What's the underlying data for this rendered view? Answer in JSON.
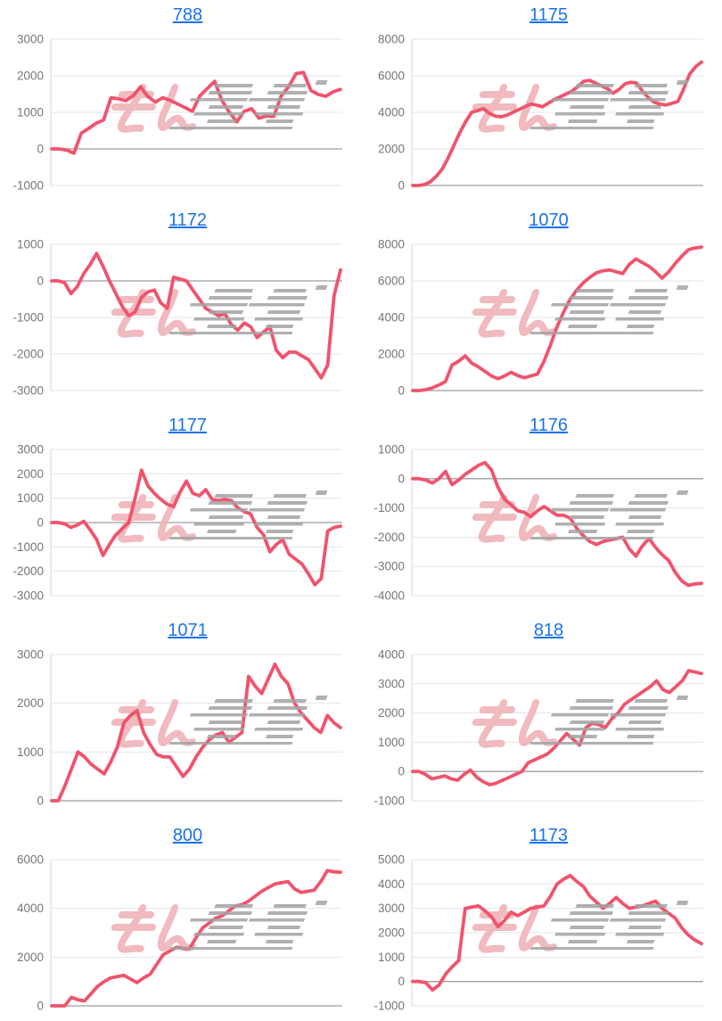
{
  "page": {
    "background": "#ffffff",
    "layout": "2x5-grid-of-machine-slump-graphs"
  },
  "style": {
    "line_color": "#f1536c",
    "grid_color": "#e4e4e4",
    "zero_line_color": "#9e9e9e",
    "axis_color": "#d4d4d4",
    "tick_label_color": "#767676",
    "title_link_color": "#1a73e8",
    "watermark_pink_color": "#efb3b8",
    "watermark_gray_color": "#a3a3a3"
  },
  "watermark": {
    "name": "minrepo-logo-watermark",
    "pink_part": "みん",
    "gray_part": "レポ"
  },
  "chart_data": [
    {
      "type": "line",
      "title": "788",
      "xlabel": "",
      "ylabel": "",
      "ylim": [
        -1000,
        3000
      ],
      "ticks": [
        3000,
        2000,
        1000,
        0,
        -1000
      ],
      "values": [
        0,
        0,
        -30,
        -120,
        430,
        560,
        700,
        790,
        1400,
        1370,
        1320,
        1450,
        1700,
        1430,
        1280,
        1400,
        1330,
        1230,
        1130,
        1030,
        1450,
        1650,
        1850,
        1320,
        1000,
        740,
        1030,
        1100,
        840,
        900,
        890,
        1450,
        1700,
        2060,
        2090,
        1600,
        1490,
        1440,
        1560,
        1630
      ]
    },
    {
      "type": "line",
      "title": "1175",
      "xlabel": "",
      "ylabel": "",
      "ylim": [
        0,
        8000
      ],
      "ticks": [
        8000,
        6000,
        4000,
        2000,
        0
      ],
      "values": [
        0,
        0,
        50,
        200,
        500,
        900,
        1500,
        2200,
        2900,
        3500,
        4000,
        4100,
        4200,
        3950,
        3800,
        3750,
        3850,
        4000,
        4150,
        4300,
        4450,
        4400,
        4300,
        4500,
        4700,
        4850,
        5000,
        5150,
        5400,
        5700,
        5750,
        5600,
        5450,
        5300,
        5050,
        5250,
        5550,
        5650,
        5600,
        5150,
        4800,
        4550,
        4450,
        4400,
        4500,
        4600,
        5300,
        6100,
        6500,
        6750
      ]
    },
    {
      "type": "line",
      "title": "1172",
      "xlabel": "",
      "ylabel": "",
      "ylim": [
        -3000,
        1000
      ],
      "ticks": [
        1000,
        0,
        -1000,
        -2000,
        -3000
      ],
      "values": [
        0,
        0,
        -50,
        -350,
        -150,
        200,
        450,
        750,
        400,
        0,
        -350,
        -700,
        -950,
        -850,
        -450,
        -300,
        -250,
        -600,
        -750,
        100,
        50,
        0,
        -250,
        -500,
        -750,
        -850,
        -950,
        -900,
        -1200,
        -1350,
        -1150,
        -1250,
        -1550,
        -1400,
        -1250,
        -1900,
        -2100,
        -1950,
        -1950,
        -2050,
        -2150,
        -2400,
        -2650,
        -2300,
        -400,
        300
      ]
    },
    {
      "type": "line",
      "title": "1070",
      "xlabel": "",
      "ylabel": "",
      "ylim": [
        0,
        8000
      ],
      "ticks": [
        8000,
        6000,
        4000,
        2000,
        0
      ],
      "values": [
        0,
        0,
        50,
        150,
        300,
        500,
        1400,
        1600,
        1900,
        1500,
        1300,
        1050,
        800,
        650,
        800,
        1000,
        820,
        700,
        800,
        900,
        1600,
        2500,
        3500,
        4300,
        5000,
        5500,
        5900,
        6200,
        6450,
        6550,
        6600,
        6500,
        6400,
        6900,
        7200,
        7000,
        6800,
        6500,
        6150,
        6500,
        6950,
        7350,
        7700,
        7800,
        7850
      ]
    },
    {
      "type": "line",
      "title": "1177",
      "xlabel": "",
      "ylabel": "",
      "ylim": [
        -3000,
        3000
      ],
      "ticks": [
        3000,
        2000,
        1000,
        0,
        -1000,
        -2000,
        -3000
      ],
      "values": [
        0,
        0,
        -50,
        -200,
        -100,
        50,
        -300,
        -700,
        -1350,
        -900,
        -500,
        -250,
        0,
        1000,
        2150,
        1500,
        1200,
        950,
        750,
        650,
        1250,
        1700,
        1200,
        1100,
        1350,
        950,
        900,
        950,
        900,
        600,
        450,
        350,
        -200,
        -500,
        -1200,
        -900,
        -700,
        -1300,
        -1500,
        -1700,
        -2100,
        -2550,
        -2300,
        -350,
        -200,
        -150
      ]
    },
    {
      "type": "line",
      "title": "1176",
      "xlabel": "",
      "ylabel": "",
      "ylim": [
        -4000,
        1000
      ],
      "ticks": [
        1000,
        0,
        -1000,
        -2000,
        -3000,
        -4000
      ],
      "values": [
        0,
        0,
        -50,
        -150,
        0,
        250,
        -200,
        -50,
        150,
        300,
        450,
        550,
        300,
        -300,
        -700,
        -900,
        -1100,
        -1150,
        -1300,
        -1100,
        -950,
        -1100,
        -1250,
        -1250,
        -1350,
        -1700,
        -1950,
        -2150,
        -2250,
        -2150,
        -2100,
        -2050,
        -2000,
        -2400,
        -2650,
        -2300,
        -2050,
        -2350,
        -2600,
        -2800,
        -3200,
        -3500,
        -3650,
        -3600,
        -3580
      ]
    },
    {
      "type": "line",
      "title": "1071",
      "xlabel": "",
      "ylabel": "",
      "ylim": [
        0,
        3000
      ],
      "ticks": [
        3000,
        2000,
        1000,
        0
      ],
      "values": [
        0,
        0,
        300,
        650,
        1000,
        900,
        750,
        650,
        550,
        800,
        1100,
        1600,
        1750,
        1850,
        1400,
        1150,
        950,
        900,
        900,
        700,
        500,
        650,
        900,
        1100,
        1250,
        1350,
        1400,
        1200,
        1300,
        1400,
        2550,
        2350,
        2200,
        2500,
        2800,
        2550,
        2400,
        2000,
        1800,
        1650,
        1500,
        1400,
        1750,
        1600,
        1500
      ]
    },
    {
      "type": "line",
      "title": "818",
      "xlabel": "",
      "ylabel": "",
      "ylim": [
        -1000,
        4000
      ],
      "ticks": [
        4000,
        3000,
        2000,
        1000,
        0,
        -1000
      ],
      "values": [
        0,
        0,
        -100,
        -250,
        -200,
        -150,
        -250,
        -300,
        -100,
        50,
        -200,
        -350,
        -450,
        -400,
        -300,
        -200,
        -100,
        0,
        300,
        400,
        500,
        600,
        800,
        1050,
        1300,
        1100,
        900,
        1500,
        1650,
        1600,
        1500,
        1800,
        2000,
        2300,
        2450,
        2600,
        2750,
        2900,
        3100,
        2800,
        2700,
        2900,
        3100,
        3450,
        3400,
        3350
      ]
    },
    {
      "type": "line",
      "title": "800",
      "xlabel": "",
      "ylabel": "",
      "ylim": [
        0,
        6000
      ],
      "ticks": [
        6000,
        4000,
        2000,
        0
      ],
      "values": [
        0,
        0,
        0,
        350,
        250,
        200,
        500,
        800,
        1000,
        1150,
        1200,
        1250,
        1100,
        950,
        1150,
        1300,
        1700,
        2100,
        2250,
        2400,
        2350,
        2350,
        2800,
        3200,
        3400,
        3600,
        3700,
        3900,
        4100,
        4150,
        4300,
        4500,
        4700,
        4850,
        5000,
        5050,
        5100,
        4800,
        4650,
        4700,
        4750,
        5100,
        5550,
        5500,
        5480
      ]
    },
    {
      "type": "line",
      "title": "1173",
      "xlabel": "",
      "ylabel": "",
      "ylim": [
        -1000,
        5000
      ],
      "ticks": [
        5000,
        4000,
        3000,
        2000,
        1000,
        0,
        -1000
      ],
      "values": [
        0,
        0,
        -50,
        -350,
        -150,
        300,
        600,
        850,
        3000,
        3050,
        3100,
        2900,
        2650,
        2250,
        2500,
        2850,
        2700,
        2850,
        3000,
        3050,
        3100,
        3500,
        4000,
        4200,
        4350,
        4100,
        3900,
        3500,
        3250,
        3000,
        3200,
        3450,
        3200,
        3000,
        3050,
        3100,
        3200,
        3300,
        3000,
        2800,
        2600,
        2200,
        1900,
        1700,
        1550
      ]
    }
  ]
}
